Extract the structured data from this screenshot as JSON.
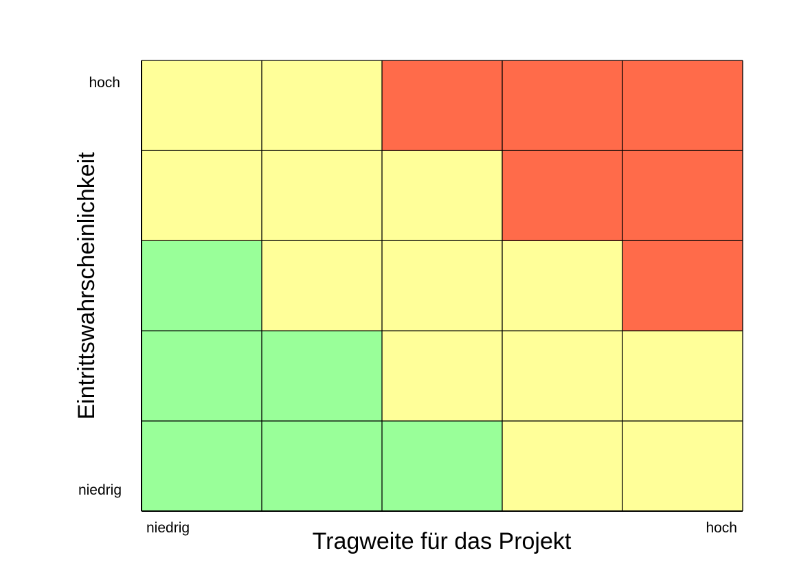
{
  "chart_data": {
    "type": "heatmap",
    "title": "",
    "xlabel": "Tragweite für das Projekt",
    "ylabel": "Eintrittswahrscheinlichkeit",
    "x_tick_labels": {
      "low": "niedrig",
      "high": "hoch"
    },
    "y_tick_labels": {
      "low": "niedrig",
      "high": "hoch"
    },
    "columns": 5,
    "rows": 5,
    "grid": true,
    "legend": "none",
    "colors": {
      "green": "#99ff99",
      "yellow": "#ffff99",
      "red": "#ff6b4a",
      "grid_line": "#000000"
    },
    "cells_top_to_bottom": [
      [
        "yellow",
        "yellow",
        "red",
        "red",
        "red"
      ],
      [
        "yellow",
        "yellow",
        "yellow",
        "red",
        "red"
      ],
      [
        "green",
        "yellow",
        "yellow",
        "yellow",
        "red"
      ],
      [
        "green",
        "green",
        "yellow",
        "yellow",
        "yellow"
      ],
      [
        "green",
        "green",
        "green",
        "yellow",
        "yellow"
      ]
    ]
  }
}
